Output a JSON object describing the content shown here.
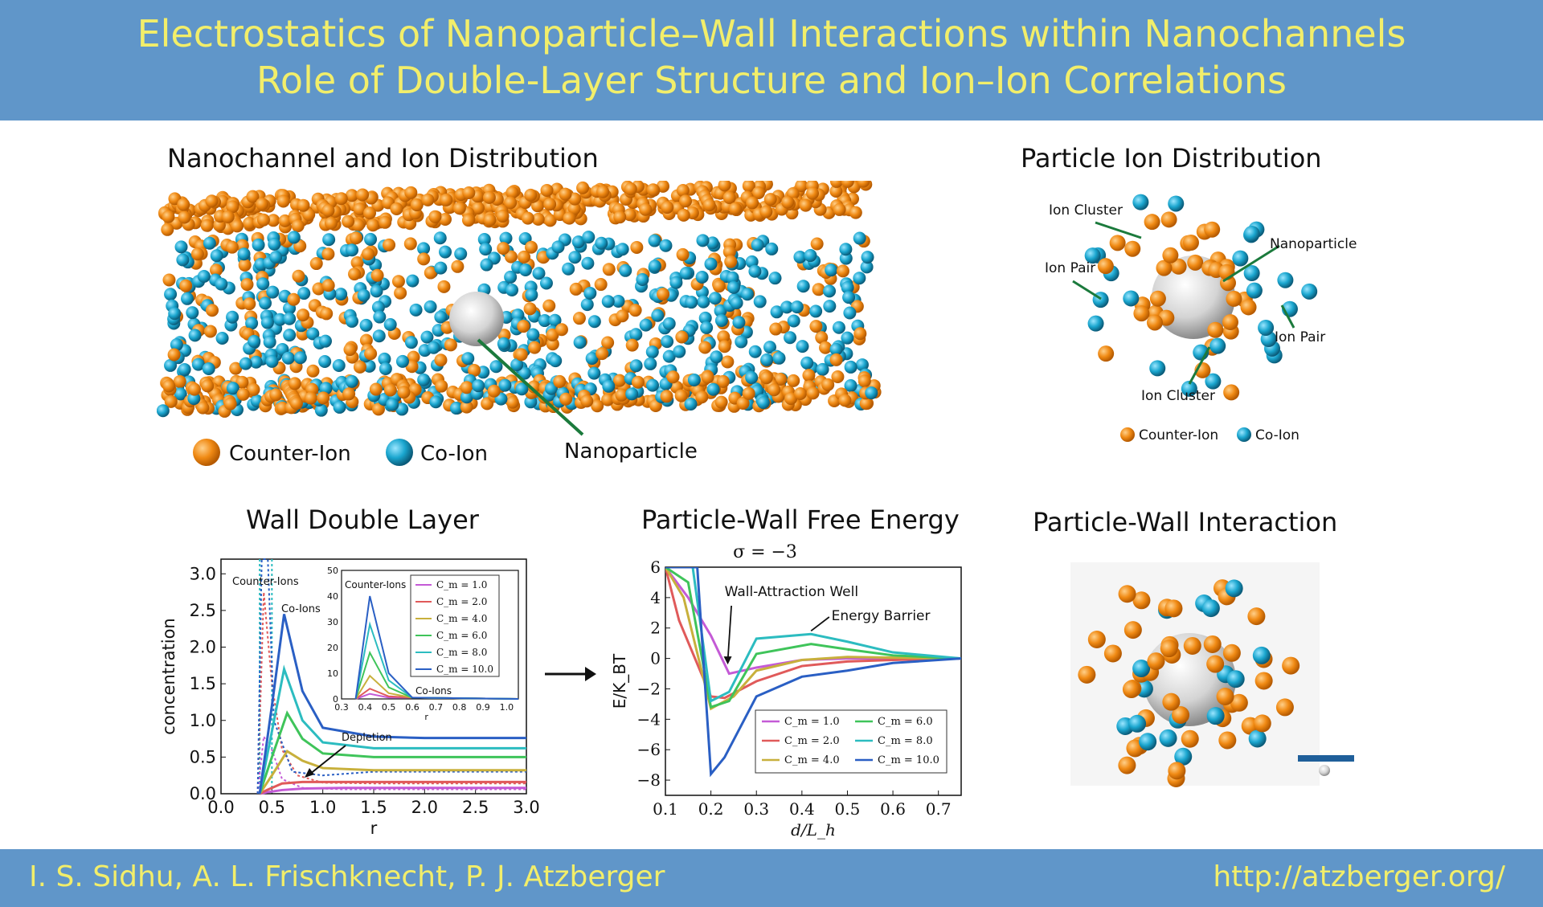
{
  "header": {
    "title_line1": "Electrostatics of Nanoparticle–Wall Interactions within Nanochannels",
    "title_line2": "Role of Double-Layer Structure and Ion–Ion Correlations"
  },
  "footer": {
    "authors": "I. S. Sidhu, A. L. Frischknecht, P. J. Atzberger",
    "url": "http://atzberger.org/"
  },
  "colors": {
    "banner": "#6096c9",
    "banner_text": "#f2ee6a",
    "counter_ion": "#f08a14",
    "co_ion": "#1aa6cf",
    "nanoparticle": "#d9d9d9",
    "label_line": "#1b7a3c"
  },
  "panels": {
    "nanochannel": {
      "title": "Nanochannel and Ion Distribution",
      "legend_counter": "Counter-Ion",
      "legend_co": "Co-Ion",
      "label_nanoparticle": "Nanoparticle"
    },
    "particle_ions": {
      "title": "Particle Ion Distribution",
      "labels": [
        "Ion Cluster",
        "Nanoparticle",
        "Ion Pair",
        "Ion Pair",
        "Ion Cluster"
      ],
      "legend_counter": "Counter-Ion",
      "legend_co": "Co-Ion"
    },
    "double_layer": {
      "title": "Wall Double Layer"
    },
    "free_energy": {
      "title": "Particle-Wall Free Energy",
      "subtitle": "σ = −3"
    },
    "interaction": {
      "title": "Particle-Wall Interaction"
    }
  },
  "chart_data": [
    {
      "type": "line",
      "name": "wall-double-layer",
      "title": "Wall Double Layer",
      "xlabel": "r",
      "ylabel": "concentration",
      "xlim": [
        0.0,
        3.0
      ],
      "ylim": [
        0.0,
        3.2
      ],
      "xticks": [
        "0.0",
        "0.5",
        "1.0",
        "1.5",
        "2.0",
        "2.5",
        "3.0"
      ],
      "yticks": [
        "0.0",
        "0.5",
        "1.0",
        "1.5",
        "2.0",
        "2.5",
        "3.0"
      ],
      "annotations": [
        "Counter-Ions",
        "Co-Ions",
        "Depletion"
      ],
      "series": [
        {
          "name": "C_m = 1.0",
          "color": "#c45ad6",
          "x": [
            0.38,
            0.45,
            0.6,
            0.8,
            1.2,
            2.0,
            3.0
          ],
          "y": [
            0,
            0.02,
            0.05,
            0.07,
            0.08,
            0.08,
            0.08
          ]
        },
        {
          "name": "C_m = 2.0",
          "color": "#e05a5a",
          "x": [
            0.38,
            0.45,
            0.6,
            0.8,
            1.2,
            2.0,
            3.0
          ],
          "y": [
            0,
            0.05,
            0.14,
            0.16,
            0.16,
            0.16,
            0.16
          ]
        },
        {
          "name": "C_m = 4.0",
          "color": "#c8b03c",
          "x": [
            0.38,
            0.5,
            0.65,
            0.8,
            1.0,
            1.5,
            2.0,
            3.0
          ],
          "y": [
            0,
            0.25,
            0.58,
            0.45,
            0.35,
            0.32,
            0.32,
            0.32
          ]
        },
        {
          "name": "C_m = 6.0",
          "color": "#3fc45a",
          "x": [
            0.38,
            0.5,
            0.65,
            0.8,
            1.0,
            1.5,
            2.0,
            3.0
          ],
          "y": [
            0,
            0.5,
            1.1,
            0.75,
            0.55,
            0.5,
            0.5,
            0.5
          ]
        },
        {
          "name": "C_m = 8.0",
          "color": "#2cbcc0",
          "x": [
            0.38,
            0.5,
            0.62,
            0.8,
            1.0,
            1.5,
            2.0,
            3.0
          ],
          "y": [
            0,
            0.85,
            1.7,
            1.0,
            0.7,
            0.62,
            0.62,
            0.62
          ]
        },
        {
          "name": "C_m = 10.0",
          "color": "#2a5fc4",
          "x": [
            0.38,
            0.5,
            0.62,
            0.8,
            1.0,
            1.5,
            2.0,
            3.0
          ],
          "y": [
            0,
            1.2,
            2.45,
            1.4,
            0.9,
            0.78,
            0.76,
            0.76
          ]
        }
      ],
      "dotted_series": [
        {
          "name": "Counter-Ions C_m = 2.0",
          "color": "#e05a5a",
          "x": [
            0.36,
            0.42,
            0.5,
            0.6,
            0.75,
            1.0,
            1.5,
            3.0
          ],
          "y": [
            0.0,
            2.75,
            1.5,
            0.6,
            0.25,
            0.15,
            0.14,
            0.14
          ]
        },
        {
          "name": "Counter-Ions C_m = 1.0",
          "color": "#c45ad6",
          "x": [
            0.36,
            0.42,
            0.5,
            0.6,
            0.8,
            1.2,
            3.0
          ],
          "y": [
            0.0,
            0.78,
            0.6,
            0.2,
            0.08,
            0.06,
            0.06
          ]
        },
        {
          "name": "Counter-Ions C_m = 10.0",
          "color": "#2a5fc4",
          "x": [
            0.36,
            0.4,
            0.46,
            0.52,
            0.7,
            1.0,
            1.5,
            3.0
          ],
          "y": [
            0.0,
            3.3,
            3.3,
            1.0,
            0.3,
            0.25,
            0.3,
            0.3
          ]
        }
      ],
      "inset": {
        "xlim": [
          0.3,
          1.05
        ],
        "ylim": [
          0,
          50
        ],
        "xticks": [
          "0.3",
          "0.4",
          "0.5",
          "0.6",
          "0.7",
          "0.8",
          "0.9",
          "1.0"
        ],
        "yticks": [
          "0",
          "10",
          "20",
          "30",
          "40",
          "50"
        ],
        "xlabel": "r",
        "annotations": [
          "Counter-Ions",
          "Co-Ions"
        ],
        "legend": [
          "C_m = 1.0",
          "C_m = 2.0",
          "C_m = 4.0",
          "C_m = 6.0",
          "C_m = 8.0",
          "C_m = 10.0"
        ],
        "peaks": [
          2,
          4,
          9,
          18,
          29,
          40
        ]
      }
    },
    {
      "type": "line",
      "name": "particle-wall-free-energy",
      "title": "Particle-Wall Free Energy",
      "subtitle": "σ = −3",
      "xlabel": "d/L_h",
      "ylabel": "E/K_BT",
      "xlim": [
        0.1,
        0.75
      ],
      "ylim": [
        -9,
        6
      ],
      "xticks": [
        "0.1",
        "0.2",
        "0.3",
        "0.4",
        "0.5",
        "0.6",
        "0.7"
      ],
      "yticks": [
        "−8",
        "−6",
        "−4",
        "−2",
        "0",
        "2",
        "4",
        "6"
      ],
      "annotations": [
        "Wall-Attraction Well",
        "Energy Barrier"
      ],
      "series": [
        {
          "name": "C_m = 1.0",
          "color": "#c45ad6",
          "x": [
            0.1,
            0.15,
            0.2,
            0.24,
            0.3,
            0.4,
            0.5,
            0.6,
            0.75
          ],
          "y": [
            6,
            4.0,
            1.5,
            -1.0,
            -0.6,
            -0.1,
            0.0,
            0.0,
            0.0
          ]
        },
        {
          "name": "C_m = 2.0",
          "color": "#e05a5a",
          "x": [
            0.1,
            0.13,
            0.2,
            0.23,
            0.3,
            0.4,
            0.5,
            0.6,
            0.75
          ],
          "y": [
            6,
            2.5,
            -2.5,
            -2.6,
            -1.5,
            -0.5,
            -0.2,
            -0.1,
            0.0
          ]
        },
        {
          "name": "C_m = 4.0",
          "color": "#c8b03c",
          "x": [
            0.1,
            0.14,
            0.2,
            0.25,
            0.3,
            0.4,
            0.5,
            0.6,
            0.75
          ],
          "y": [
            6,
            4.0,
            -3.3,
            -2.5,
            -0.8,
            -0.1,
            0.1,
            0.05,
            0.0
          ]
        },
        {
          "name": "C_m = 6.0",
          "color": "#3fc45a",
          "x": [
            0.1,
            0.15,
            0.2,
            0.24,
            0.3,
            0.42,
            0.5,
            0.6,
            0.75
          ],
          "y": [
            6,
            5.0,
            -3.2,
            -2.8,
            0.3,
            0.95,
            0.6,
            0.2,
            0.0
          ]
        },
        {
          "name": "C_m = 8.0",
          "color": "#2cbcc0",
          "x": [
            0.1,
            0.16,
            0.2,
            0.24,
            0.3,
            0.42,
            0.5,
            0.6,
            0.75
          ],
          "y": [
            6,
            6.0,
            -2.8,
            -2.2,
            1.3,
            1.6,
            1.1,
            0.4,
            0.0
          ]
        },
        {
          "name": "C_m = 10.0",
          "color": "#2a5fc4",
          "x": [
            0.1,
            0.17,
            0.2,
            0.23,
            0.3,
            0.4,
            0.5,
            0.6,
            0.75
          ],
          "y": [
            6,
            6.0,
            -7.6,
            -6.5,
            -2.5,
            -1.2,
            -0.8,
            -0.3,
            0.0
          ]
        }
      ],
      "legend": [
        "C_m = 1.0",
        "C_m = 2.0",
        "C_m = 4.0",
        "C_m = 6.0",
        "C_m = 8.0",
        "C_m = 10.0"
      ]
    }
  ]
}
